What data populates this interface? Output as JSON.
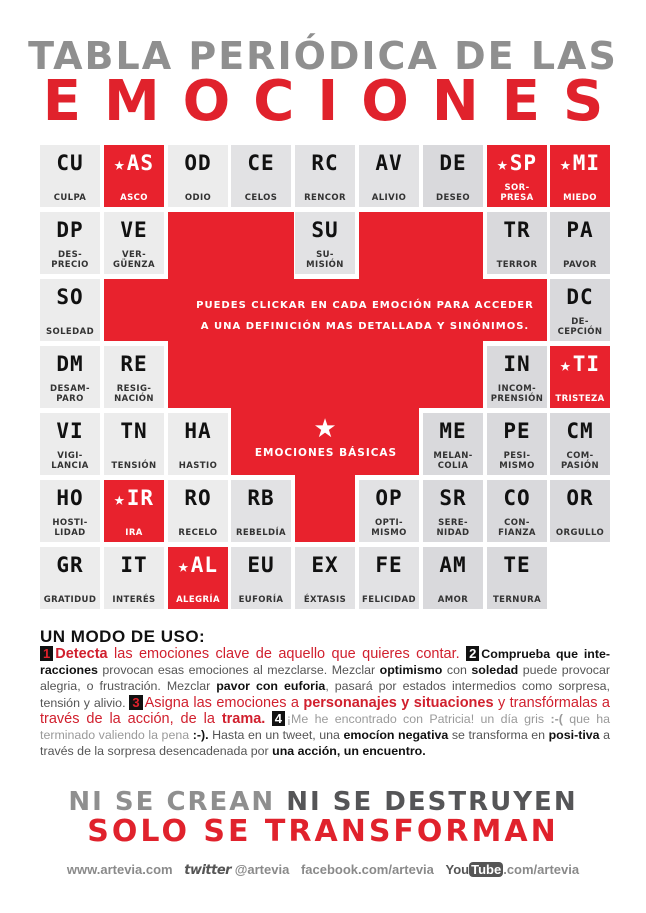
{
  "header": {
    "title_top": "TABLA PERIÓDICA DE LAS",
    "title_main": "EMOCIONES"
  },
  "colors": {
    "accent_red": "#e8222d",
    "cell_light": "#ececec",
    "cell_dark": "#d9d9dc",
    "title_gray": "#8f8f8f"
  },
  "grid": {
    "hint_line1": "PUEDES CLICKAR EN CADA EMOCIÓN PARA ACCEDER",
    "hint_line2": "A UNA DEFINICIÓN MAS DETALLADA Y SINÓNIMOS.",
    "basic_star_icon": "★",
    "basic_label": "EMOCIONES BÁSICAS",
    "cells": [
      {
        "sym": "CU",
        "name": "CULPA",
        "basic": false,
        "row": 0,
        "col": 0
      },
      {
        "sym": "AS",
        "name": "ASCO",
        "basic": true,
        "row": 0,
        "col": 1
      },
      {
        "sym": "OD",
        "name": "ODIO",
        "basic": false,
        "row": 0,
        "col": 2
      },
      {
        "sym": "CE",
        "name": "CELOS",
        "basic": false,
        "row": 0,
        "col": 3
      },
      {
        "sym": "RC",
        "name": "RENCOR",
        "basic": false,
        "row": 0,
        "col": 4
      },
      {
        "sym": "AV",
        "name": "ALIVIO",
        "basic": false,
        "row": 0,
        "col": 5
      },
      {
        "sym": "DE",
        "name": "DESEO",
        "basic": false,
        "row": 0,
        "col": 6
      },
      {
        "sym": "SP",
        "name": "SOR-\nPRESA",
        "basic": true,
        "row": 0,
        "col": 7
      },
      {
        "sym": "MI",
        "name": "MIEDO",
        "basic": true,
        "row": 0,
        "col": 8
      },
      {
        "sym": "DP",
        "name": "DES-\nPRECIO",
        "basic": false,
        "row": 1,
        "col": 0
      },
      {
        "sym": "VE",
        "name": "VER-\nGÜENZA",
        "basic": false,
        "row": 1,
        "col": 1
      },
      {
        "sym": "SU",
        "name": "SU-\nMISIÓN",
        "basic": false,
        "row": 1,
        "col": 4
      },
      {
        "sym": "TR",
        "name": "TERROR",
        "basic": false,
        "row": 1,
        "col": 7
      },
      {
        "sym": "PA",
        "name": "PAVOR",
        "basic": false,
        "row": 1,
        "col": 8
      },
      {
        "sym": "SO",
        "name": "SOLEDAD",
        "basic": false,
        "row": 2,
        "col": 0
      },
      {
        "sym": "DC",
        "name": "DE-\nCEPCIÓN",
        "basic": false,
        "row": 2,
        "col": 8
      },
      {
        "sym": "DM",
        "name": "DESAM-\nPARO",
        "basic": false,
        "row": 3,
        "col": 0
      },
      {
        "sym": "RE",
        "name": "RESIG-\nNACIÓN",
        "basic": false,
        "row": 3,
        "col": 1
      },
      {
        "sym": "IN",
        "name": "INCOM-\nPRENSIÓN",
        "basic": false,
        "row": 3,
        "col": 7
      },
      {
        "sym": "TI",
        "name": "TRISTEZA",
        "basic": true,
        "row": 3,
        "col": 8
      },
      {
        "sym": "VI",
        "name": "VIGI-\nLANCIA",
        "basic": false,
        "row": 4,
        "col": 0
      },
      {
        "sym": "TN",
        "name": "TENSIÓN",
        "basic": false,
        "row": 4,
        "col": 1
      },
      {
        "sym": "HA",
        "name": "HASTIO",
        "basic": false,
        "row": 4,
        "col": 2
      },
      {
        "sym": "ME",
        "name": "MELAN-\nCOLIA",
        "basic": false,
        "row": 4,
        "col": 6
      },
      {
        "sym": "PE",
        "name": "PESI-\nMISMO",
        "basic": false,
        "row": 4,
        "col": 7
      },
      {
        "sym": "CM",
        "name": "COM-\nPASIÓN",
        "basic": false,
        "row": 4,
        "col": 8
      },
      {
        "sym": "HO",
        "name": "HOSTI-\nLIDAD",
        "basic": false,
        "row": 5,
        "col": 0
      },
      {
        "sym": "IR",
        "name": "IRA",
        "basic": true,
        "row": 5,
        "col": 1
      },
      {
        "sym": "RO",
        "name": "RECELO",
        "basic": false,
        "row": 5,
        "col": 2
      },
      {
        "sym": "RB",
        "name": "REBELDÍA",
        "basic": false,
        "row": 5,
        "col": 3
      },
      {
        "sym": "OP",
        "name": "OPTI-\nMISMO",
        "basic": false,
        "row": 5,
        "col": 5
      },
      {
        "sym": "SR",
        "name": "SERE-\nNIDAD",
        "basic": false,
        "row": 5,
        "col": 6
      },
      {
        "sym": "CO",
        "name": "CON-\nFIANZA",
        "basic": false,
        "row": 5,
        "col": 7
      },
      {
        "sym": "OR",
        "name": "ORGULLO",
        "basic": false,
        "row": 5,
        "col": 8
      },
      {
        "sym": "GR",
        "name": "GRATIDUD",
        "basic": false,
        "row": 6,
        "col": 0
      },
      {
        "sym": "IT",
        "name": "INTERÉS",
        "basic": false,
        "row": 6,
        "col": 1
      },
      {
        "sym": "AL",
        "name": "ALEGRÍA",
        "basic": true,
        "row": 6,
        "col": 2
      },
      {
        "sym": "EU",
        "name": "EUFORÍA",
        "basic": false,
        "row": 6,
        "col": 3
      },
      {
        "sym": "EX",
        "name": "ÉXTASIS",
        "basic": false,
        "row": 6,
        "col": 4
      },
      {
        "sym": "FE",
        "name": "FELICIDAD",
        "basic": false,
        "row": 6,
        "col": 5
      },
      {
        "sym": "AM",
        "name": "AMOR",
        "basic": false,
        "row": 6,
        "col": 6
      },
      {
        "sym": "TE",
        "name": "TERNURA",
        "basic": false,
        "row": 6,
        "col": 7
      }
    ]
  },
  "usage": {
    "heading": "UN MODO DE USO:",
    "step1_num": "1",
    "step1_bold": "Detecta",
    "step1_text": " las emociones clave de aquello que quieres contar. ",
    "step2_num": "2",
    "step2_bold": "Comprueba que inte-racciones",
    "step2_text_a": " provocan esas emociones al mezclarse. Mezclar ",
    "step2_b1": "optimismo",
    "step2_text_b": " con ",
    "step2_b2": "soledad",
    "step2_text_c": " puede provocar alegria, o frustración. Mezclar ",
    "step2_b3": "pavor con euforia",
    "step2_text_d": ", pasará por estados intermedios como sorpresa, tensión y alivio. ",
    "step3_num": "3",
    "step3_text_a": "Asigna las emociones a ",
    "step3_b1": "personanajes y situaciones",
    "step3_text_b": " y transfórmalas a través de la acción, de la ",
    "step3_b2": "trama.",
    "step4_num": "4",
    "step4_gray_a": "¡Me he encontrado con Patricia! un día gris ",
    "step4_gray_b1": ":-(",
    "step4_gray_b": " que ha terminado valiendo la pena ",
    "step4_gray_b2": ":-).",
    "step4_text_a": " Hasta en un tweet, una ",
    "step4_b1": "emocíon negativa",
    "step4_text_b": " se transforma en ",
    "step4_b2": "posi-tiva",
    "step4_text_c": " a través de la sorpresa desencadenada por ",
    "step4_b3": "una acción, un encuentro."
  },
  "slogan": {
    "line1_light": "NI SE CREAN",
    "line1_dark": "NI SE DESTRUYEN",
    "line2": "SOLO SE TRANSFORMAN"
  },
  "footer": {
    "website": "www.artevia.com",
    "twitter_logo": "twitter",
    "twitter_handle": "@artevia",
    "facebook": "facebook.com/artevia",
    "youtube_you": "You",
    "youtube_tube": "Tube",
    "youtube_path": ".com/artevia"
  }
}
